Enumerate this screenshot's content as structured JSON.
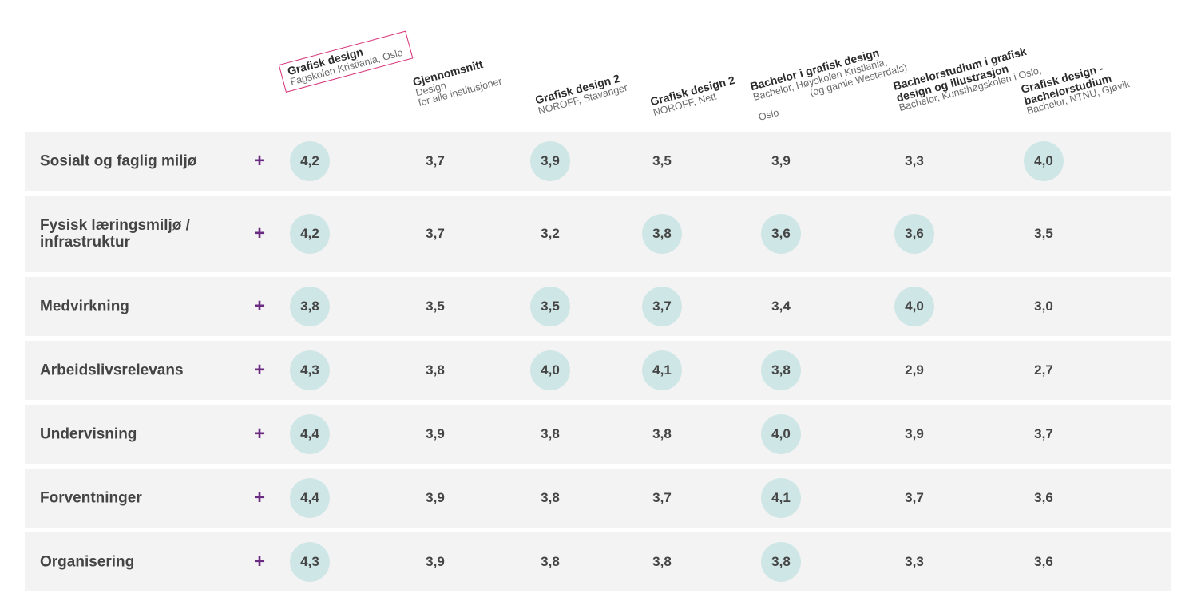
{
  "columns": [
    {
      "title": "Grafisk design",
      "subtitle": "Fagskolen Kristiania, Oslo",
      "highlight": true
    },
    {
      "title": "Gjennomsnitt",
      "subtitle": "Design",
      "subtitle2": "for alle institusjoner"
    },
    {
      "title": "Grafisk design 2",
      "subtitle": "NOROFF, Stavanger"
    },
    {
      "title": "Grafisk design 2",
      "subtitle": "NOROFF, Nett"
    },
    {
      "title": "Bachelor i grafisk design",
      "subtitle": "Bachelor, Høyskolen Kristiania,",
      "subtitle2": "(og gamle Westerdals)",
      "subtitle3": "Oslo"
    },
    {
      "title": "Bachelorstudium i grafisk",
      "title2": "design og illustrasjon",
      "subtitle": "Bachelor, Kunsthøgskolen i Oslo,"
    },
    {
      "title": "Grafisk design -",
      "title2": "bachelorstudium",
      "subtitle": "Bachelor, NTNU, Gjøvik"
    }
  ],
  "rows": [
    {
      "label": "Sosialt og faglig miljø",
      "expand": "+",
      "values": [
        "4,2",
        "3,7",
        "3,9",
        "3,5",
        "3,9",
        "3,3",
        "4,0"
      ],
      "highlighted": [
        true,
        false,
        true,
        false,
        false,
        false,
        true
      ]
    },
    {
      "label": "Fysisk læringsmiljø / infrastruktur",
      "expand": "+",
      "values": [
        "4,2",
        "3,7",
        "3,2",
        "3,8",
        "3,6",
        "3,6",
        "3,5"
      ],
      "highlighted": [
        true,
        false,
        false,
        true,
        true,
        true,
        false
      ]
    },
    {
      "label": "Medvirkning",
      "expand": "+",
      "values": [
        "3,8",
        "3,5",
        "3,5",
        "3,7",
        "3,4",
        "4,0",
        "3,0"
      ],
      "highlighted": [
        true,
        false,
        true,
        true,
        false,
        true,
        false
      ]
    },
    {
      "label": "Arbeidslivsrelevans",
      "expand": "+",
      "values": [
        "4,3",
        "3,8",
        "4,0",
        "4,1",
        "3,8",
        "2,9",
        "2,7"
      ],
      "highlighted": [
        true,
        false,
        true,
        true,
        true,
        false,
        false
      ]
    },
    {
      "label": "Undervisning",
      "expand": "+",
      "values": [
        "4,4",
        "3,9",
        "3,8",
        "3,8",
        "4,0",
        "3,9",
        "3,7"
      ],
      "highlighted": [
        true,
        false,
        false,
        false,
        true,
        false,
        false
      ]
    },
    {
      "label": "Forventninger",
      "expand": "+",
      "values": [
        "4,4",
        "3,9",
        "3,8",
        "3,7",
        "4,1",
        "3,7",
        "3,6"
      ],
      "highlighted": [
        true,
        false,
        false,
        false,
        true,
        false,
        false
      ]
    },
    {
      "label": "Organisering",
      "expand": "+",
      "values": [
        "4,3",
        "3,9",
        "3,8",
        "3,8",
        "3,8",
        "3,3",
        "3,6"
      ],
      "highlighted": [
        true,
        false,
        false,
        false,
        true,
        false,
        false
      ]
    }
  ],
  "colors": {
    "highlight_bubble": "#cfe6e6",
    "accent": "#6b2a82",
    "header_border": "#d6337a",
    "row_bg": "#f3f3f3"
  }
}
